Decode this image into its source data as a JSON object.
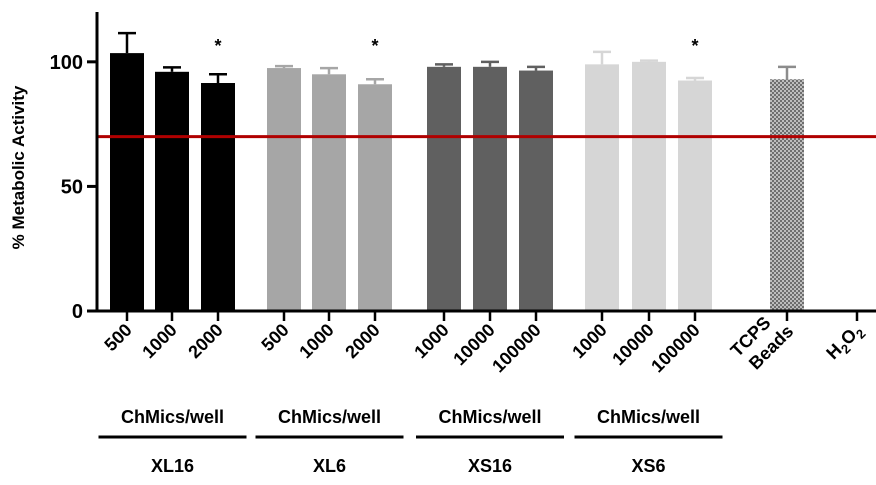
{
  "chart_data": {
    "type": "bar",
    "ylabel": "% Metabolic Activity",
    "ylim": [
      0,
      120
    ],
    "yticks": [
      0,
      50,
      100
    ],
    "grid": false,
    "threshold_line": {
      "value": 70,
      "color": "#b00000"
    },
    "bars": [
      {
        "label": "500",
        "value": 103.5,
        "error": 8.0,
        "group": 0,
        "color": "#000000",
        "significant": false
      },
      {
        "label": "1000",
        "value": 96.0,
        "error": 1.8,
        "group": 0,
        "color": "#000000",
        "significant": false
      },
      {
        "label": "2000",
        "value": 91.5,
        "error": 3.5,
        "group": 0,
        "color": "#000000",
        "significant": true
      },
      {
        "label": "500",
        "value": 97.5,
        "error": 0.8,
        "group": 1,
        "color": "#a6a6a6",
        "significant": false
      },
      {
        "label": "1000",
        "value": 95.0,
        "error": 2.5,
        "group": 1,
        "color": "#a6a6a6",
        "significant": false
      },
      {
        "label": "2000",
        "value": 91.0,
        "error": 2.0,
        "group": 1,
        "color": "#a6a6a6",
        "significant": true
      },
      {
        "label": "1000",
        "value": 98.0,
        "error": 1.0,
        "group": 2,
        "color": "#606060",
        "significant": false
      },
      {
        "label": "10000",
        "value": 98.0,
        "error": 2.0,
        "group": 2,
        "color": "#606060",
        "significant": false
      },
      {
        "label": "100000",
        "value": 96.5,
        "error": 1.5,
        "group": 2,
        "color": "#606060",
        "significant": false
      },
      {
        "label": "1000",
        "value": 99.0,
        "error": 5.0,
        "group": 3,
        "color": "#d6d6d6",
        "significant": false
      },
      {
        "label": "10000",
        "value": 100.0,
        "error": 0.5,
        "group": 3,
        "color": "#d6d6d6",
        "significant": false
      },
      {
        "label": "100000",
        "value": 92.5,
        "error": 1.0,
        "group": 3,
        "color": "#d6d6d6",
        "significant": true
      },
      {
        "label": "TCPS\nBeads",
        "value": 93.0,
        "error": 5.0,
        "group": 4,
        "color": "#8c8c8c",
        "pattern": "checker",
        "significant": false
      },
      {
        "label": "H2O2",
        "value": 0,
        "error": 0,
        "group": 5,
        "color": "#000000",
        "significant": false
      }
    ],
    "significance_marker": "*",
    "groups": [
      {
        "unit_label": "ChMics/well",
        "name": "XL16"
      },
      {
        "unit_label": "ChMics/well",
        "name": "XL6"
      },
      {
        "unit_label": "ChMics/well",
        "name": "XS16"
      },
      {
        "unit_label": "ChMics/well",
        "name": "XS6"
      }
    ]
  }
}
